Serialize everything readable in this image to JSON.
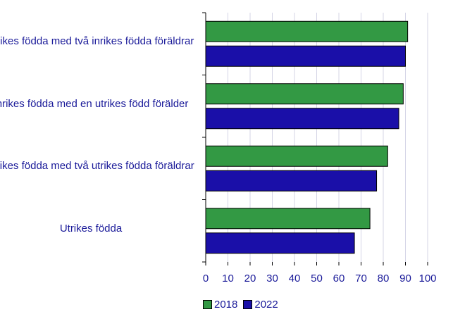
{
  "chart_data": {
    "type": "bar",
    "orientation": "horizontal",
    "categories": [
      "Inrikes födda med två inrikes födda föräldrar",
      "Inrikes födda med en utrikes född förälder",
      "Inrikes födda med två utrikes födda föräldrar",
      "Utrikes födda"
    ],
    "series": [
      {
        "name": "2018",
        "color": "#339944",
        "values": [
          91,
          89,
          82,
          74
        ]
      },
      {
        "name": "2022",
        "color": "#1a0fa8",
        "values": [
          90,
          87,
          77,
          67
        ]
      }
    ],
    "xlim": [
      0,
      100
    ],
    "xticks": [
      "0",
      "10",
      "20",
      "30",
      "40",
      "50",
      "60",
      "70",
      "80",
      "90",
      "100"
    ],
    "grid": "vertical",
    "legend_position": "bottom",
    "title": "",
    "xlabel": "",
    "ylabel": ""
  }
}
